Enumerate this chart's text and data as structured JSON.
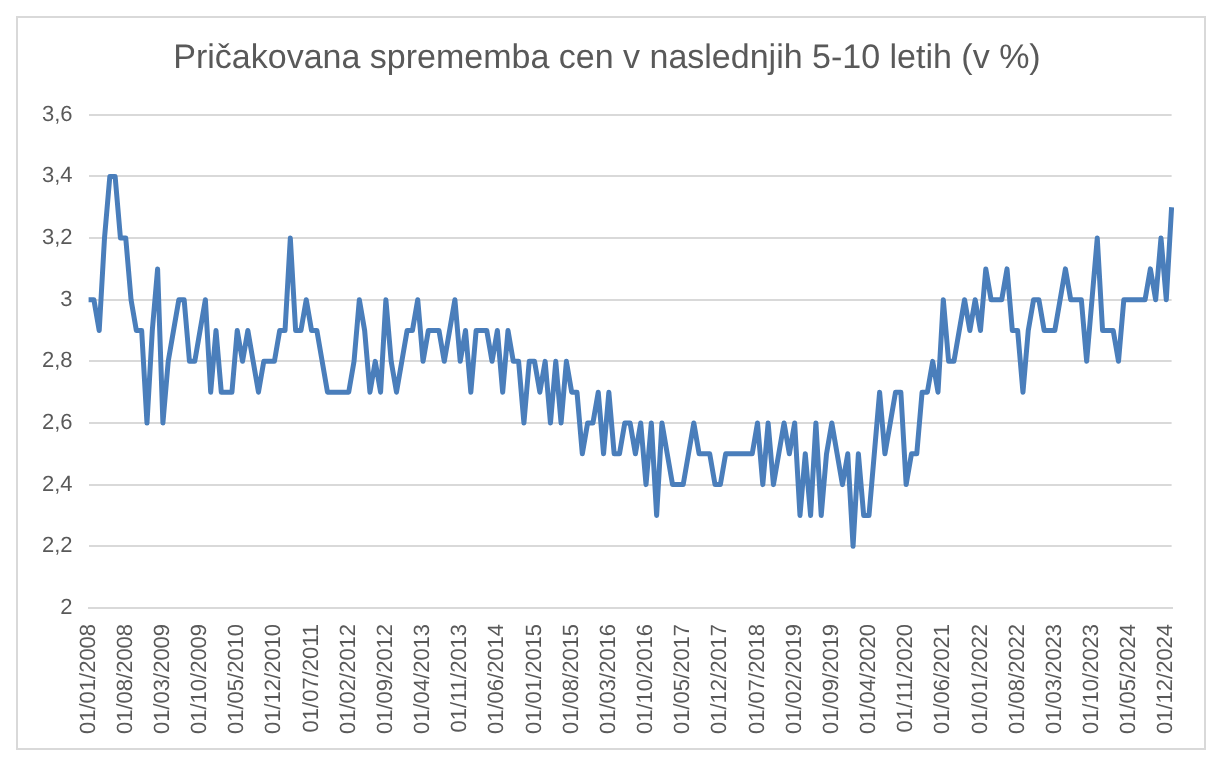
{
  "chart_data": {
    "type": "line",
    "title": "Pričakovana sprememba cen v naslednjih 5-10 letih (v %)",
    "categories": [
      "01/01/2008",
      null,
      null,
      null,
      null,
      null,
      null,
      "01/08/2008",
      null,
      null,
      null,
      null,
      null,
      null,
      "01/03/2009",
      null,
      null,
      null,
      null,
      null,
      null,
      "01/10/2009",
      null,
      null,
      null,
      null,
      null,
      null,
      "01/05/2010",
      null,
      null,
      null,
      null,
      null,
      null,
      "01/12/2010",
      null,
      null,
      null,
      null,
      null,
      null,
      "01/07/2011",
      null,
      null,
      null,
      null,
      null,
      null,
      "01/02/2012",
      null,
      null,
      null,
      null,
      null,
      null,
      "01/09/2012",
      null,
      null,
      null,
      null,
      null,
      null,
      "01/04/2013",
      null,
      null,
      null,
      null,
      null,
      null,
      "01/11/2013",
      null,
      null,
      null,
      null,
      null,
      null,
      "01/06/2014",
      null,
      null,
      null,
      null,
      null,
      null,
      "01/01/2015",
      null,
      null,
      null,
      null,
      null,
      null,
      "01/08/2015",
      null,
      null,
      null,
      null,
      null,
      null,
      "01/03/2016",
      null,
      null,
      null,
      null,
      null,
      null,
      "01/10/2016",
      null,
      null,
      null,
      null,
      null,
      null,
      "01/05/2017",
      null,
      null,
      null,
      null,
      null,
      null,
      "01/12/2017",
      null,
      null,
      null,
      null,
      null,
      null,
      "01/07/2018",
      null,
      null,
      null,
      null,
      null,
      null,
      "01/02/2019",
      null,
      null,
      null,
      null,
      null,
      null,
      "01/09/2019",
      null,
      null,
      null,
      null,
      null,
      null,
      "01/04/2020",
      null,
      null,
      null,
      null,
      null,
      null,
      "01/11/2020",
      null,
      null,
      null,
      null,
      null,
      null,
      "01/06/2021",
      null,
      null,
      null,
      null,
      null,
      null,
      "01/01/2022",
      null,
      null,
      null,
      null,
      null,
      null,
      "01/08/2022",
      null,
      null,
      null,
      null,
      null,
      null,
      "01/03/2023",
      null,
      null,
      null,
      null,
      null,
      null,
      "01/10/2023",
      null,
      null,
      null,
      null,
      null,
      null,
      "01/05/2024",
      null,
      null,
      null,
      null,
      null,
      null,
      "01/12/2024",
      null
    ],
    "series": [
      {
        "color": "#4a7ebb",
        "values": [
          3.0,
          3.0,
          2.9,
          3.2,
          3.4,
          3.4,
          3.2,
          3.2,
          3.0,
          2.9,
          2.9,
          2.6,
          2.9,
          3.1,
          2.6,
          2.8,
          2.9,
          3.0,
          3.0,
          2.8,
          2.8,
          2.9,
          3.0,
          2.7,
          2.9,
          2.7,
          2.7,
          2.7,
          2.9,
          2.8,
          2.9,
          2.8,
          2.7,
          2.8,
          2.8,
          2.8,
          2.9,
          2.9,
          3.2,
          2.9,
          2.9,
          3.0,
          2.9,
          2.9,
          2.8,
          2.7,
          2.7,
          2.7,
          2.7,
          2.7,
          2.8,
          3.0,
          2.9,
          2.7,
          2.8,
          2.7,
          3.0,
          2.8,
          2.7,
          2.8,
          2.9,
          2.9,
          3.0,
          2.8,
          2.9,
          2.9,
          2.9,
          2.8,
          2.9,
          3.0,
          2.8,
          2.9,
          2.7,
          2.9,
          2.9,
          2.9,
          2.8,
          2.9,
          2.7,
          2.9,
          2.8,
          2.8,
          2.6,
          2.8,
          2.8,
          2.7,
          2.8,
          2.6,
          2.8,
          2.6,
          2.8,
          2.7,
          2.7,
          2.5,
          2.6,
          2.6,
          2.7,
          2.5,
          2.7,
          2.5,
          2.5,
          2.6,
          2.6,
          2.5,
          2.6,
          2.4,
          2.6,
          2.3,
          2.6,
          2.5,
          2.4,
          2.4,
          2.4,
          2.5,
          2.6,
          2.5,
          2.5,
          2.5,
          2.4,
          2.4,
          2.5,
          2.5,
          2.5,
          2.5,
          2.5,
          2.5,
          2.6,
          2.4,
          2.6,
          2.4,
          2.5,
          2.6,
          2.5,
          2.6,
          2.3,
          2.5,
          2.3,
          2.6,
          2.3,
          2.5,
          2.6,
          2.5,
          2.4,
          2.5,
          2.2,
          2.5,
          2.3,
          2.3,
          2.5,
          2.7,
          2.5,
          2.6,
          2.7,
          2.7,
          2.4,
          2.5,
          2.5,
          2.7,
          2.7,
          2.8,
          2.7,
          3.0,
          2.8,
          2.8,
          2.9,
          3.0,
          2.9,
          3.0,
          2.9,
          3.1,
          3.0,
          3.0,
          3.0,
          3.1,
          2.9,
          2.9,
          2.7,
          2.9,
          3.0,
          3.0,
          2.9,
          2.9,
          2.9,
          3.0,
          3.1,
          3.0,
          3.0,
          3.0,
          2.8,
          3.0,
          3.2,
          2.9,
          2.9,
          2.9,
          2.8,
          3.0,
          3.0,
          3.0,
          3.0,
          3.0,
          3.1,
          3.0,
          3.2,
          3.0,
          3.3
        ]
      }
    ],
    "ylim": [
      2,
      3.6
    ],
    "yticks": [
      2,
      {
        "value": 2.2,
        "label": "2,2"
      },
      {
        "value": 2.4,
        "label": "2,4"
      },
      {
        "value": 2.6,
        "label": "2,6"
      },
      {
        "value": 2.8,
        "label": "2,8"
      },
      3,
      {
        "value": 3.2,
        "label": "3,2"
      },
      {
        "value": 3.4,
        "label": "3,4"
      },
      {
        "value": 3.6,
        "label": "3,6"
      }
    ],
    "grid": "y",
    "legend": false,
    "marker": "none",
    "line_style": "solid"
  }
}
